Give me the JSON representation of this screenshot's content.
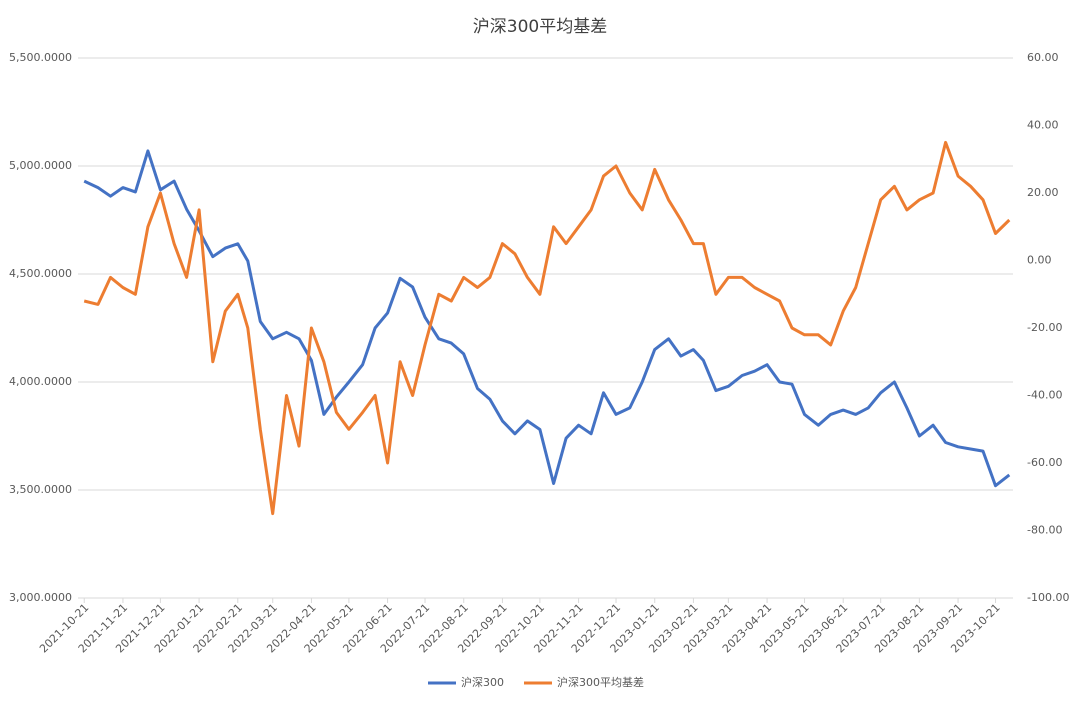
{
  "chart_data": {
    "type": "line",
    "title": "沪深300平均基差",
    "x": [
      "2021-10-21",
      "2021-11-01",
      "2021-11-11",
      "2021-11-21",
      "2021-12-01",
      "2021-12-11",
      "2021-12-21",
      "2022-01-01",
      "2022-01-11",
      "2022-01-21",
      "2022-02-01",
      "2022-02-11",
      "2022-02-21",
      "2022-03-01",
      "2022-03-11",
      "2022-03-21",
      "2022-04-01",
      "2022-04-11",
      "2022-04-21",
      "2022-05-01",
      "2022-05-11",
      "2022-05-21",
      "2022-06-01",
      "2022-06-11",
      "2022-06-21",
      "2022-07-01",
      "2022-07-11",
      "2022-07-21",
      "2022-08-01",
      "2022-08-11",
      "2022-08-21",
      "2022-09-01",
      "2022-09-11",
      "2022-09-21",
      "2022-10-01",
      "2022-10-11",
      "2022-10-21",
      "2022-11-01",
      "2022-11-11",
      "2022-11-21",
      "2022-12-01",
      "2022-12-11",
      "2022-12-21",
      "2023-01-01",
      "2023-01-11",
      "2023-01-21",
      "2023-02-01",
      "2023-02-11",
      "2023-02-21",
      "2023-03-01",
      "2023-03-11",
      "2023-03-21",
      "2023-04-01",
      "2023-04-11",
      "2023-04-21",
      "2023-05-01",
      "2023-05-11",
      "2023-05-21",
      "2023-06-01",
      "2023-06-11",
      "2023-06-21",
      "2023-07-01",
      "2023-07-11",
      "2023-07-21",
      "2023-08-01",
      "2023-08-11",
      "2023-08-21",
      "2023-09-01",
      "2023-09-11",
      "2023-09-21",
      "2023-10-01",
      "2023-10-11",
      "2023-10-21",
      "2023-11-01"
    ],
    "series": [
      {
        "name": "沪深300",
        "color": "#4472c4",
        "axis": "y",
        "values": [
          4930,
          4900,
          4860,
          4900,
          4880,
          5070,
          4890,
          4930,
          4800,
          4700,
          4580,
          4620,
          4640,
          4560,
          4280,
          4200,
          4230,
          4200,
          4100,
          3850,
          3930,
          4000,
          4080,
          4250,
          4320,
          4480,
          4440,
          4300,
          4200,
          4180,
          4130,
          3970,
          3920,
          3820,
          3760,
          3820,
          3780,
          3530,
          3740,
          3800,
          3760,
          3950,
          3850,
          3880,
          4000,
          4150,
          4200,
          4120,
          4150,
          4100,
          3960,
          3980,
          4030,
          4050,
          4080,
          4000,
          3990,
          3850,
          3800,
          3850,
          3870,
          3850,
          3880,
          3950,
          4000,
          3880,
          3750,
          3800,
          3720,
          3700,
          3690,
          3680,
          3520,
          3570
        ]
      },
      {
        "name": "沪深300平均基差",
        "color": "#ed7d31",
        "axis": "y2",
        "values": [
          -12,
          -13,
          -5,
          -8,
          -10,
          10,
          20,
          5,
          -5,
          15,
          -30,
          -15,
          -10,
          -20,
          -50,
          -75,
          -40,
          -55,
          -20,
          -30,
          -45,
          -50,
          -45,
          -40,
          -60,
          -30,
          -40,
          -25,
          -10,
          -12,
          -5,
          -8,
          -5,
          5,
          2,
          -5,
          -10,
          10,
          5,
          10,
          15,
          25,
          28,
          20,
          15,
          27,
          18,
          12,
          5,
          5,
          -10,
          -5,
          -5,
          -8,
          -10,
          -12,
          -20,
          -22,
          -22,
          -25,
          -15,
          -8,
          5,
          18,
          22,
          15,
          18,
          20,
          35,
          25,
          22,
          18,
          8,
          12
        ]
      }
    ],
    "xlim": [
      "2021-10-16",
      "2023-11-04"
    ],
    "xticks": [
      "2021-10-21",
      "2021-11-21",
      "2021-12-21",
      "2022-01-21",
      "2022-02-21",
      "2022-03-21",
      "2022-04-21",
      "2022-05-21",
      "2022-06-21",
      "2022-07-21",
      "2022-08-21",
      "2022-09-21",
      "2022-10-21",
      "2022-11-21",
      "2022-12-21",
      "2023-01-21",
      "2023-02-21",
      "2023-03-21",
      "2023-04-21",
      "2023-05-21",
      "2023-06-21",
      "2023-07-21",
      "2023-08-21",
      "2023-09-21",
      "2023-10-21"
    ],
    "ylim": [
      3000,
      5500
    ],
    "yticks": [
      {
        "value": 3000,
        "label": "3,000.0000"
      },
      {
        "value": 3500,
        "label": "3,500.0000"
      },
      {
        "value": 4000,
        "label": "4,000.0000"
      },
      {
        "value": 4500,
        "label": "4,500.0000"
      },
      {
        "value": 5000,
        "label": "5,000.0000"
      },
      {
        "value": 5500,
        "label": "5,500.0000"
      }
    ],
    "y2lim": [
      -100,
      60
    ],
    "y2ticks": [
      {
        "value": -100,
        "label": "-100.00"
      },
      {
        "value": -80,
        "label": "-80.00"
      },
      {
        "value": -60,
        "label": "-60.00"
      },
      {
        "value": -40,
        "label": "-40.00"
      },
      {
        "value": -20,
        "label": "-20.00"
      },
      {
        "value": 0,
        "label": "0.00"
      },
      {
        "value": 20,
        "label": "20.00"
      },
      {
        "value": 40,
        "label": "40.00"
      },
      {
        "value": 60,
        "label": "60.00"
      }
    ],
    "grid": true,
    "legend": "bottom"
  }
}
